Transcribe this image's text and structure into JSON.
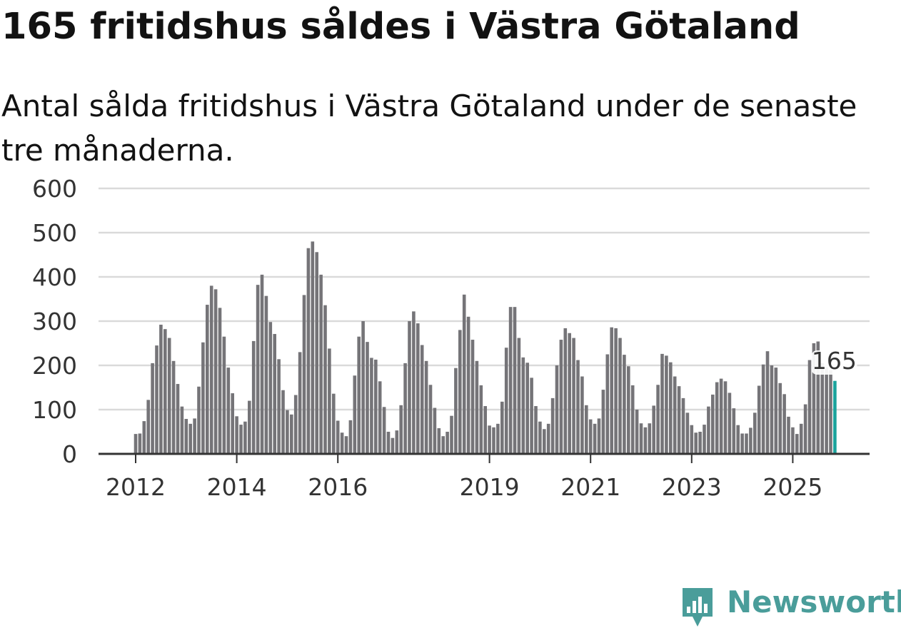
{
  "header": {
    "title": "165 fritidshus såldes i Västra Götaland",
    "subtitle": "Antal sålda fritidshus i Västra Götaland under de senaste tre månaderna."
  },
  "colors": {
    "bar": "#757478",
    "highlight": "#1ba39c",
    "gridline": "#dadada",
    "axis": "#333333",
    "brand": "#4a9d9a"
  },
  "brand": {
    "name": "Newsworthy",
    "icon": "bar-chart-badge-icon"
  },
  "chart_data": {
    "type": "bar",
    "title": "165 fritidshus såldes i Västra Götaland",
    "subtitle": "Antal sålda fritidshus i Västra Götaland under de senaste tre månaderna.",
    "xlabel": "",
    "ylabel": "",
    "ylim": [
      0,
      600
    ],
    "yticks": [
      0,
      100,
      200,
      300,
      400,
      500,
      600
    ],
    "xticks": [
      {
        "label": "2012",
        "index": 0
      },
      {
        "label": "2014",
        "index": 24
      },
      {
        "label": "2016",
        "index": 48
      },
      {
        "label": "2019",
        "index": 84
      },
      {
        "label": "2021",
        "index": 108
      },
      {
        "label": "2023",
        "index": 132
      },
      {
        "label": "2025",
        "index": 156
      }
    ],
    "grid": true,
    "legend": "none",
    "highlight_index": 166,
    "annotation": {
      "label": "165",
      "index": 166
    },
    "values": [
      45,
      46,
      74,
      122,
      205,
      245,
      292,
      282,
      262,
      210,
      158,
      107,
      79,
      68,
      80,
      152,
      252,
      337,
      380,
      372,
      330,
      265,
      195,
      137,
      85,
      66,
      73,
      120,
      255,
      382,
      405,
      357,
      298,
      271,
      214,
      144,
      99,
      89,
      133,
      230,
      359,
      465,
      480,
      456,
      405,
      336,
      238,
      136,
      75,
      48,
      40,
      76,
      177,
      265,
      300,
      253,
      217,
      213,
      164,
      106,
      50,
      36,
      53,
      110,
      205,
      300,
      322,
      295,
      246,
      210,
      156,
      104,
      58,
      40,
      50,
      86,
      194,
      280,
      360,
      310,
      258,
      210,
      155,
      108,
      64,
      60,
      68,
      118,
      240,
      332,
      332,
      262,
      218,
      206,
      172,
      108,
      73,
      56,
      68,
      126,
      200,
      258,
      284,
      273,
      262,
      212,
      175,
      110,
      78,
      68,
      80,
      145,
      225,
      286,
      284,
      262,
      224,
      198,
      155,
      100,
      69,
      60,
      69,
      109,
      156,
      226,
      222,
      207,
      175,
      153,
      126,
      93,
      65,
      48,
      50,
      66,
      107,
      134,
      162,
      170,
      164,
      138,
      103,
      65,
      46,
      46,
      59,
      93,
      154,
      202,
      232,
      200,
      195,
      160,
      135,
      84,
      60,
      45,
      68,
      112,
      212,
      250,
      254,
      205,
      196,
      189,
      165
    ]
  }
}
